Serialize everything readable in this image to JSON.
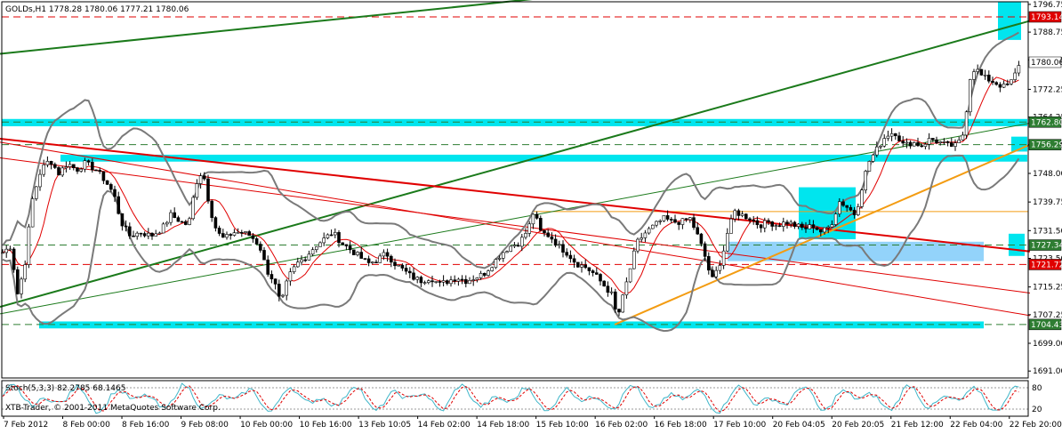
{
  "header": {
    "symbol_text": "GOLDs,H1  1778.28 1780.06 1777.21 1780.06",
    "stoch_text": "Stoch(5,3,3) 82.2785 68.1465",
    "copyright_text": "XTB-Trader, © 2001-2011 MetaQuotes Software Corp."
  },
  "colors": {
    "candles": "#000000",
    "bollinger": "#7a7a7a",
    "ma": "#e00000",
    "zones": "#00e5ee",
    "light_zone": "#87cefa",
    "trend_green": "#1b7a1b",
    "trend_red": "#e00000",
    "trend_orange": "#f39c12",
    "dashed_green": "#2e7d32",
    "dashed_red": "#e00000",
    "stoch_main": "#3fb6c9",
    "stoch_signal": "#e00000"
  },
  "chart_data": {
    "type": "candlestick",
    "symbol": "GOLDs",
    "timeframe": "H1",
    "last_bar": {
      "open": 1778.28,
      "high": 1780.06,
      "low": 1777.21,
      "close": 1780.06
    },
    "ylim": [
      1689.0,
      1797.5
    ],
    "y_ticks": [
      "1796.75",
      "1788.75",
      "1780.75",
      "1772.25",
      "1764.25",
      "1756.25",
      "1748.00",
      "1739.75",
      "1731.50",
      "1723.50",
      "1715.25",
      "1707.25",
      "1699.00",
      "1691.00"
    ],
    "x_ticks": [
      "7 Feb 2012",
      "8 Feb 00:00",
      "8 Feb 16:00",
      "9 Feb 08:00",
      "10 Feb 00:00",
      "10 Feb 16:00",
      "13 Feb 10:05",
      "14 Feb 02:00",
      "14 Feb 18:00",
      "15 Feb 10:00",
      "16 Feb 02:00",
      "16 Feb 18:00",
      "17 Feb 10:00",
      "20 Feb 04:05",
      "20 Feb 20:05",
      "21 Feb 12:00",
      "22 Feb 04:00",
      "22 Feb 20:00"
    ],
    "price_labels": [
      {
        "text": "1793.14",
        "value": 1793.14,
        "style": "red"
      },
      {
        "text": "1780.06",
        "value": 1780.06,
        "style": "white"
      },
      {
        "text": "1762.80",
        "value": 1762.8,
        "style": "green"
      },
      {
        "text": "1756.29",
        "value": 1756.29,
        "style": "green"
      },
      {
        "text": "1727.34",
        "value": 1727.34,
        "style": "green"
      },
      {
        "text": "1721.72",
        "value": 1721.72,
        "style": "red"
      },
      {
        "text": "1704.43",
        "value": 1704.43,
        "style": "green"
      }
    ],
    "horizontal_lines": [
      {
        "value": 1793.14,
        "style": "red-dashed"
      },
      {
        "value": 1762.8,
        "style": "green-dashed"
      },
      {
        "value": 1756.29,
        "style": "green-dashed"
      },
      {
        "value": 1727.34,
        "style": "green-dashed"
      },
      {
        "value": 1721.72,
        "style": "red-dashed"
      },
      {
        "value": 1704.43,
        "style": "green-dashed"
      },
      {
        "value": 1737.0,
        "style": "orange-solid",
        "from_x": 598
      }
    ],
    "zones": [
      {
        "name": "zone-1762",
        "y1": 1763.7,
        "y2": 1761.6,
        "x1": 2,
        "x2": 1155,
        "color": "cyan"
      },
      {
        "name": "zone-1752",
        "y1": 1753.4,
        "y2": 1751.4,
        "x1": 68,
        "x2": 1155,
        "color": "cyan"
      },
      {
        "name": "zone-1704",
        "y1": 1705.3,
        "y2": 1703.3,
        "x1": 44,
        "x2": 1106,
        "color": "cyan"
      },
      {
        "name": "zone-top-right",
        "y1": 1797.5,
        "y2": 1786.5,
        "x1": 1122,
        "x2": 1148,
        "color": "cyan"
      },
      {
        "name": "zone-mid",
        "y1": 1744.0,
        "y2": 1729.0,
        "x1": 898,
        "x2": 962,
        "color": "cyan"
      },
      {
        "name": "zone-light",
        "y1": 1728.3,
        "y2": 1722.7,
        "x1": 818,
        "x2": 1106,
        "color": "light"
      },
      {
        "name": "zone-right-1756",
        "y1": 1758.6,
        "y2": 1754.3,
        "x1": 1137,
        "x2": 1155,
        "color": "cyan"
      },
      {
        "name": "zone-right-1727",
        "y1": 1730.6,
        "y2": 1724.2,
        "x1": 1134,
        "x2": 1152,
        "color": "cyan"
      }
    ],
    "trend_lines": [
      {
        "name": "green-upper",
        "x1": 0,
        "y1": 1782.5,
        "x2": 1158,
        "y2": 1813.0,
        "color": "green",
        "width": 2
      },
      {
        "name": "green-lower",
        "x1": 0,
        "y1": 1709.5,
        "x2": 1158,
        "y2": 1792.0,
        "color": "green",
        "width": 2
      },
      {
        "name": "green-thin",
        "x1": 0,
        "y1": 1707.5,
        "x2": 1158,
        "y2": 1762.5,
        "color": "green",
        "width": 1
      },
      {
        "name": "red-main",
        "x1": 0,
        "y1": 1758.0,
        "x2": 1158,
        "y2": 1725.5,
        "color": "red",
        "width": 2
      },
      {
        "name": "red-mid",
        "x1": 0,
        "y1": 1752.5,
        "x2": 1158,
        "y2": 1713.5,
        "color": "red",
        "width": 1
      },
      {
        "name": "red-low",
        "x1": 0,
        "y1": 1757.0,
        "x2": 1158,
        "y2": 1707.0,
        "color": "red",
        "width": 1
      },
      {
        "name": "orange-rising",
        "x1": 691,
        "y1": 1704.4,
        "x2": 1158,
        "y2": 1756.3,
        "color": "orange",
        "width": 2
      }
    ],
    "series_anchors": [
      [
        2,
        1725
      ],
      [
        12,
        1727
      ],
      [
        20,
        1713
      ],
      [
        28,
        1722
      ],
      [
        36,
        1740
      ],
      [
        46,
        1749
      ],
      [
        56,
        1752
      ],
      [
        66,
        1748
      ],
      [
        76,
        1751
      ],
      [
        86,
        1749
      ],
      [
        96,
        1751
      ],
      [
        108,
        1749
      ],
      [
        118,
        1746
      ],
      [
        128,
        1742
      ],
      [
        136,
        1734
      ],
      [
        146,
        1730
      ],
      [
        158,
        1731
      ],
      [
        170,
        1730
      ],
      [
        182,
        1732
      ],
      [
        192,
        1736
      ],
      [
        204,
        1734
      ],
      [
        212,
        1733
      ],
      [
        220,
        1745
      ],
      [
        228,
        1749
      ],
      [
        236,
        1738
      ],
      [
        244,
        1731
      ],
      [
        252,
        1729
      ],
      [
        262,
        1731
      ],
      [
        272,
        1731
      ],
      [
        282,
        1730
      ],
      [
        292,
        1727
      ],
      [
        300,
        1720
      ],
      [
        308,
        1717
      ],
      [
        316,
        1710
      ],
      [
        324,
        1718
      ],
      [
        334,
        1722
      ],
      [
        344,
        1724
      ],
      [
        354,
        1727
      ],
      [
        364,
        1729
      ],
      [
        374,
        1731
      ],
      [
        384,
        1728
      ],
      [
        394,
        1726
      ],
      [
        404,
        1724
      ],
      [
        414,
        1722
      ],
      [
        424,
        1723
      ],
      [
        434,
        1725
      ],
      [
        444,
        1722
      ],
      [
        454,
        1720
      ],
      [
        464,
        1718
      ],
      [
        474,
        1717
      ],
      [
        484,
        1718
      ],
      [
        494,
        1716
      ],
      [
        504,
        1717
      ],
      [
        514,
        1718
      ],
      [
        524,
        1717
      ],
      [
        534,
        1718
      ],
      [
        544,
        1719
      ],
      [
        554,
        1722
      ],
      [
        564,
        1725
      ],
      [
        574,
        1727
      ],
      [
        584,
        1728
      ],
      [
        594,
        1732
      ],
      [
        600,
        1737
      ],
      [
        608,
        1731
      ],
      [
        618,
        1730
      ],
      [
        628,
        1727
      ],
      [
        638,
        1725
      ],
      [
        648,
        1722
      ],
      [
        658,
        1721
      ],
      [
        668,
        1719
      ],
      [
        678,
        1716
      ],
      [
        688,
        1713
      ],
      [
        694,
        1706
      ],
      [
        700,
        1712
      ],
      [
        708,
        1720
      ],
      [
        716,
        1728
      ],
      [
        726,
        1731
      ],
      [
        736,
        1733
      ],
      [
        746,
        1735
      ],
      [
        756,
        1734
      ],
      [
        766,
        1734
      ],
      [
        776,
        1735
      ],
      [
        786,
        1729
      ],
      [
        794,
        1723
      ],
      [
        800,
        1717
      ],
      [
        806,
        1720
      ],
      [
        812,
        1724
      ],
      [
        818,
        1731
      ],
      [
        826,
        1737
      ],
      [
        834,
        1736
      ],
      [
        844,
        1735
      ],
      [
        854,
        1733
      ],
      [
        864,
        1734
      ],
      [
        874,
        1733
      ],
      [
        884,
        1734
      ],
      [
        894,
        1733
      ],
      [
        904,
        1732
      ],
      [
        914,
        1733
      ],
      [
        924,
        1731
      ],
      [
        934,
        1733
      ],
      [
        944,
        1740
      ],
      [
        954,
        1738
      ],
      [
        962,
        1736
      ],
      [
        968,
        1743
      ],
      [
        976,
        1751
      ],
      [
        986,
        1755
      ],
      [
        996,
        1759
      ],
      [
        1006,
        1760
      ],
      [
        1016,
        1756
      ],
      [
        1026,
        1757
      ],
      [
        1036,
        1756
      ],
      [
        1046,
        1758
      ],
      [
        1056,
        1757
      ],
      [
        1066,
        1756
      ],
      [
        1076,
        1756
      ],
      [
        1084,
        1760
      ],
      [
        1088,
        1770
      ],
      [
        1092,
        1778
      ],
      [
        1098,
        1778
      ],
      [
        1104,
        1776
      ],
      [
        1112,
        1775
      ],
      [
        1120,
        1774
      ],
      [
        1128,
        1773
      ],
      [
        1136,
        1774
      ],
      [
        1142,
        1777
      ],
      [
        1146,
        1780
      ]
    ],
    "stochastic": {
      "main": 82.2785,
      "signal": 68.1465,
      "ylim": [
        0,
        100
      ],
      "levels": [
        "80",
        "20"
      ]
    }
  }
}
